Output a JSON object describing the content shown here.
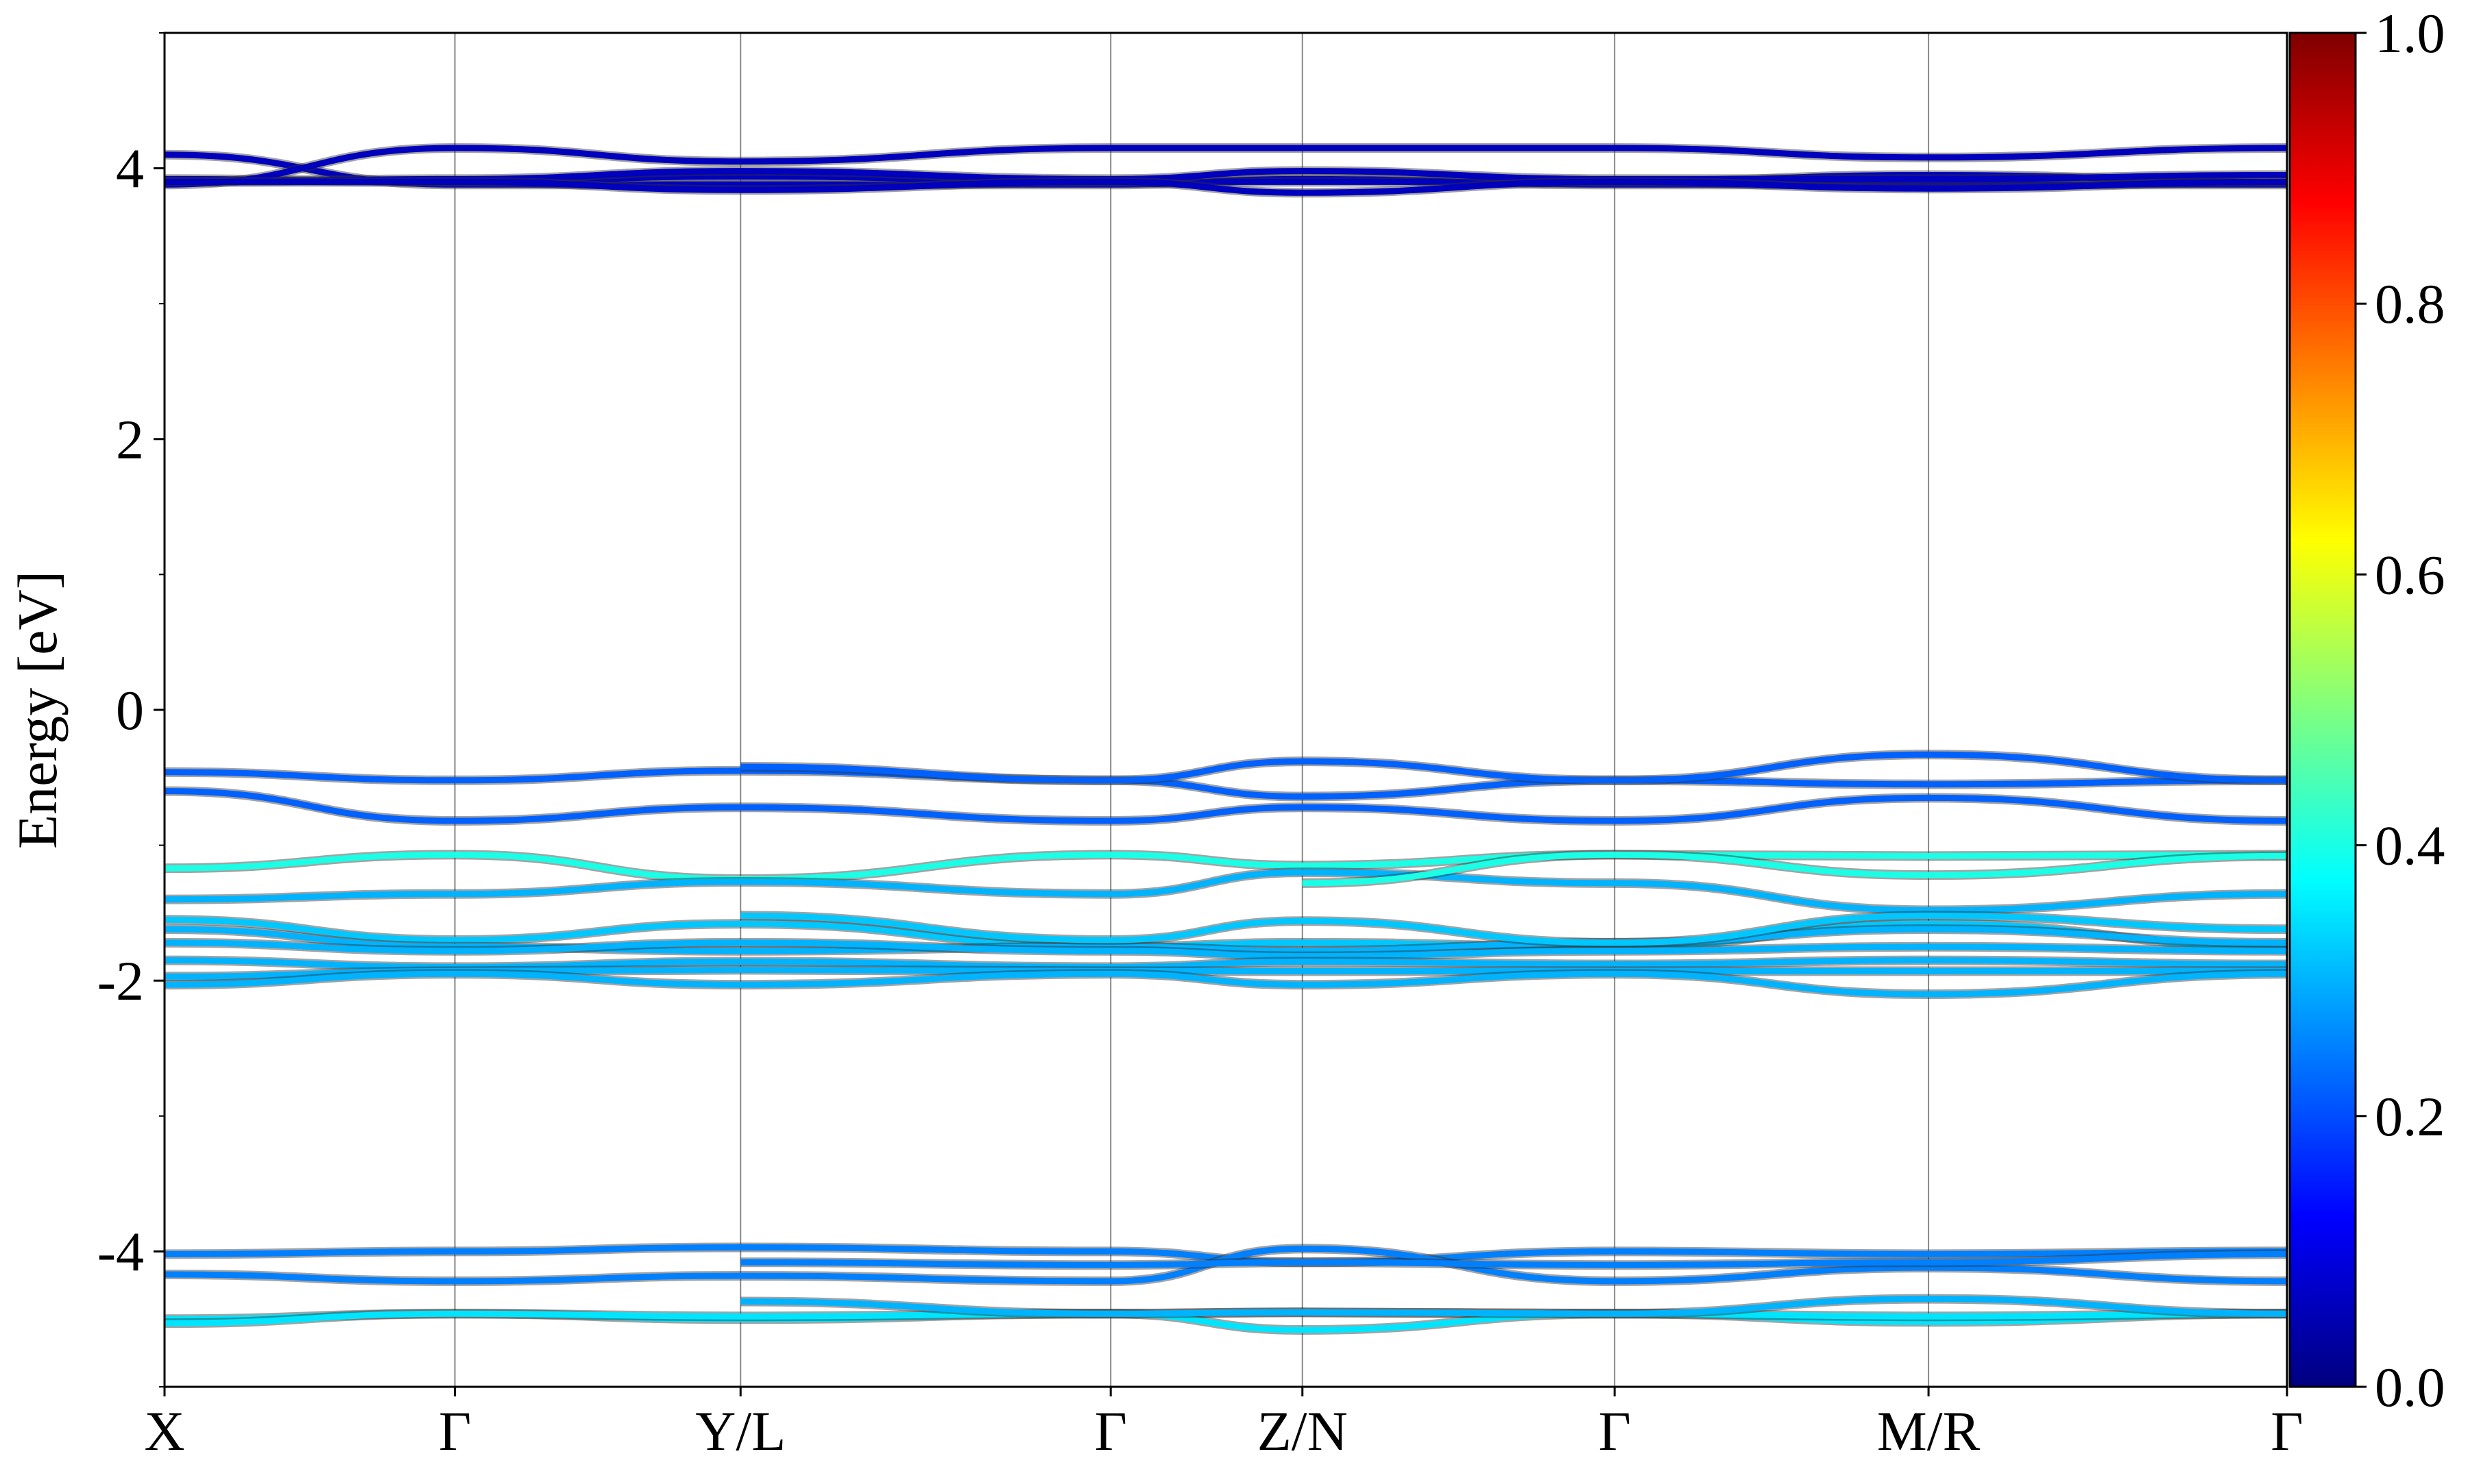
{
  "chart_data": {
    "type": "line",
    "title": "",
    "xlabel": "",
    "ylabel": "Energy [eV]",
    "ylim": [
      -5,
      5
    ],
    "yticks": [
      4,
      2,
      0,
      -2,
      -4
    ],
    "ytick_labels": [
      "4",
      "2",
      "0",
      "-2",
      "-4"
    ],
    "x_segments": [
      {
        "from": 0,
        "to": 1
      },
      {
        "from": 1,
        "to": 2
      },
      {
        "from": 2,
        "to": 3
      },
      {
        "from": 3,
        "to": 4
      },
      {
        "from": 4,
        "to": 5
      },
      {
        "from": 5,
        "to": 6
      },
      {
        "from": 6,
        "to": 7
      }
    ],
    "kpoint_positions": [
      0,
      0.1368,
      0.2714,
      0.4458,
      0.5361,
      0.6832,
      0.8311,
      1.0
    ],
    "kpoint_labels": [
      "X",
      "Γ",
      "Y/L",
      "Γ",
      "Z/N",
      "Γ",
      "M/R",
      "Γ"
    ],
    "grid": "vertical lines at high-symmetry points",
    "colorbar": {
      "range": [
        0,
        1
      ],
      "ticks": [
        0,
        0.2,
        0.4,
        0.6,
        0.8,
        1
      ],
      "tick_labels": [
        "0.0",
        "0.2",
        "0.4",
        "0.6",
        "0.8",
        "1.0"
      ],
      "colormap": "jet"
    },
    "bands": [
      {
        "weight": 0.06,
        "points": [
          [
            0,
            4.1
          ],
          [
            1,
            3.88
          ],
          [
            2,
            3.88
          ],
          [
            3,
            3.88
          ],
          [
            4,
            3.92
          ],
          [
            5,
            3.88
          ],
          [
            6,
            3.88
          ],
          [
            7,
            3.88
          ]
        ]
      },
      {
        "weight": 0.06,
        "points": [
          [
            0,
            3.92
          ],
          [
            1,
            3.9
          ],
          [
            2,
            3.94
          ],
          [
            3,
            3.9
          ],
          [
            4,
            3.9
          ],
          [
            5,
            3.9
          ],
          [
            6,
            3.95
          ],
          [
            7,
            3.9
          ]
        ]
      },
      {
        "weight": 0.06,
        "points": [
          [
            0,
            3.9
          ],
          [
            1,
            3.92
          ],
          [
            2,
            3.98
          ],
          [
            3,
            3.92
          ],
          [
            4,
            3.98
          ],
          [
            5,
            3.92
          ],
          [
            6,
            3.92
          ],
          [
            7,
            3.95
          ]
        ]
      },
      {
        "weight": 0.06,
        "points": [
          [
            0,
            3.88
          ],
          [
            1,
            4.15
          ],
          [
            2,
            4.05
          ],
          [
            3,
            4.15
          ],
          [
            4,
            4.15
          ],
          [
            5,
            4.15
          ],
          [
            6,
            4.08
          ],
          [
            7,
            4.15
          ]
        ]
      },
      {
        "weight": 0.06,
        "points": [
          [
            0,
            3.9
          ],
          [
            1,
            3.9
          ],
          [
            2,
            3.84
          ],
          [
            3,
            3.9
          ],
          [
            4,
            3.82
          ],
          [
            5,
            3.9
          ],
          [
            6,
            3.85
          ],
          [
            7,
            3.9
          ]
        ]
      },
      {
        "weight": 0.22,
        "points": [
          [
            0,
            -0.46
          ],
          [
            1,
            -0.52
          ],
          [
            2,
            -0.45
          ],
          [
            3,
            -0.52
          ],
          [
            4,
            -0.64
          ],
          [
            5,
            -0.52
          ],
          [
            6,
            -0.55
          ],
          [
            7,
            -0.52
          ]
        ]
      },
      {
        "weight": 0.22,
        "points": [
          [
            0,
            -0.6
          ],
          [
            1,
            -0.82
          ],
          [
            2,
            -0.72
          ],
          [
            3,
            -0.82
          ],
          [
            4,
            -0.72
          ],
          [
            5,
            -0.82
          ],
          [
            6,
            -0.65
          ],
          [
            7,
            -0.82
          ]
        ]
      },
      {
        "weight": 0.22,
        "points": [
          [
            2,
            -0.42
          ],
          [
            3,
            -0.52
          ],
          [
            4,
            -0.38
          ],
          [
            5,
            -0.52
          ],
          [
            6,
            -0.33
          ],
          [
            7,
            -0.52
          ]
        ]
      },
      {
        "weight": 0.4,
        "points": [
          [
            0,
            -1.17
          ],
          [
            1,
            -1.07
          ],
          [
            2,
            -1.25
          ],
          [
            3,
            -1.07
          ],
          [
            4,
            -1.15
          ],
          [
            5,
            -1.07
          ],
          [
            6,
            -1.08
          ],
          [
            7,
            -1.07
          ]
        ]
      },
      {
        "weight": 0.3,
        "points": [
          [
            0,
            -1.4
          ],
          [
            1,
            -1.36
          ],
          [
            2,
            -1.27
          ],
          [
            3,
            -1.36
          ],
          [
            4,
            -1.2
          ],
          [
            5,
            -1.28
          ],
          [
            6,
            -1.48
          ],
          [
            7,
            -1.36
          ]
        ]
      },
      {
        "weight": 0.4,
        "points": [
          [
            4,
            -1.28
          ],
          [
            5,
            -1.07
          ],
          [
            6,
            -1.22
          ],
          [
            7,
            -1.08
          ]
        ]
      },
      {
        "weight": 0.32,
        "points": [
          [
            0,
            -1.55
          ],
          [
            1,
            -1.7
          ],
          [
            2,
            -1.58
          ],
          [
            3,
            -1.75
          ],
          [
            4,
            -1.72
          ],
          [
            5,
            -1.75
          ],
          [
            6,
            -1.58
          ],
          [
            7,
            -1.75
          ]
        ]
      },
      {
        "weight": 0.3,
        "points": [
          [
            0,
            -1.62
          ],
          [
            1,
            -1.75
          ],
          [
            2,
            -1.78
          ],
          [
            3,
            -1.75
          ],
          [
            4,
            -1.78
          ],
          [
            5,
            -1.72
          ],
          [
            6,
            -1.62
          ],
          [
            7,
            -1.72
          ]
        ]
      },
      {
        "weight": 0.3,
        "points": [
          [
            0,
            -1.72
          ],
          [
            1,
            -1.78
          ],
          [
            2,
            -1.72
          ],
          [
            3,
            -1.78
          ],
          [
            4,
            -1.82
          ],
          [
            5,
            -1.78
          ],
          [
            6,
            -1.75
          ],
          [
            7,
            -1.78
          ]
        ]
      },
      {
        "weight": 0.3,
        "points": [
          [
            0,
            -1.85
          ],
          [
            1,
            -1.9
          ],
          [
            2,
            -1.86
          ],
          [
            3,
            -1.9
          ],
          [
            4,
            -1.86
          ],
          [
            5,
            -1.88
          ],
          [
            6,
            -1.85
          ],
          [
            7,
            -1.88
          ]
        ]
      },
      {
        "weight": 0.3,
        "points": [
          [
            0,
            -1.97
          ],
          [
            1,
            -1.93
          ],
          [
            2,
            -1.92
          ],
          [
            3,
            -1.93
          ],
          [
            4,
            -1.93
          ],
          [
            5,
            -1.93
          ],
          [
            6,
            -1.93
          ],
          [
            7,
            -1.93
          ]
        ]
      },
      {
        "weight": 0.3,
        "points": [
          [
            0,
            -2.03
          ],
          [
            1,
            -1.95
          ],
          [
            2,
            -2.03
          ],
          [
            3,
            -1.95
          ],
          [
            4,
            -2.03
          ],
          [
            5,
            -1.95
          ],
          [
            6,
            -2.1
          ],
          [
            7,
            -1.95
          ]
        ]
      },
      {
        "weight": 0.32,
        "points": [
          [
            2,
            -1.52
          ],
          [
            3,
            -1.7
          ],
          [
            4,
            -1.56
          ],
          [
            5,
            -1.72
          ],
          [
            6,
            -1.52
          ],
          [
            7,
            -1.62
          ]
        ]
      },
      {
        "weight": 0.25,
        "points": [
          [
            0,
            -4.02
          ],
          [
            1,
            -4.0
          ],
          [
            2,
            -3.97
          ],
          [
            3,
            -4.0
          ],
          [
            4,
            -4.08
          ],
          [
            5,
            -4.0
          ],
          [
            6,
            -4.02
          ],
          [
            7,
            -4.0
          ]
        ]
      },
      {
        "weight": 0.25,
        "points": [
          [
            0,
            -4.17
          ],
          [
            1,
            -4.22
          ],
          [
            2,
            -4.18
          ],
          [
            3,
            -4.22
          ],
          [
            4,
            -3.98
          ],
          [
            5,
            -4.22
          ],
          [
            6,
            -4.12
          ],
          [
            7,
            -4.22
          ]
        ]
      },
      {
        "weight": 0.25,
        "points": [
          [
            2,
            -4.08
          ],
          [
            3,
            -4.1
          ],
          [
            4,
            -4.08
          ],
          [
            5,
            -4.1
          ],
          [
            6,
            -4.08
          ],
          [
            7,
            -4.02
          ]
        ]
      },
      {
        "weight": 0.35,
        "points": [
          [
            0,
            -4.5
          ],
          [
            1,
            -4.46
          ],
          [
            2,
            -4.5
          ],
          [
            3,
            -4.46
          ],
          [
            4,
            -4.45
          ],
          [
            5,
            -4.46
          ],
          [
            6,
            -4.52
          ],
          [
            7,
            -4.46
          ]
        ]
      },
      {
        "weight": 0.35,
        "points": [
          [
            0,
            -4.53
          ],
          [
            1,
            -4.46
          ],
          [
            2,
            -4.48
          ],
          [
            3,
            -4.46
          ],
          [
            4,
            -4.58
          ],
          [
            5,
            -4.46
          ],
          [
            6,
            -4.48
          ],
          [
            7,
            -4.46
          ]
        ]
      },
      {
        "weight": 0.3,
        "points": [
          [
            2,
            -4.37
          ],
          [
            3,
            -4.46
          ],
          [
            4,
            -4.45
          ],
          [
            5,
            -4.46
          ],
          [
            6,
            -4.35
          ],
          [
            7,
            -4.46
          ]
        ]
      }
    ]
  }
}
